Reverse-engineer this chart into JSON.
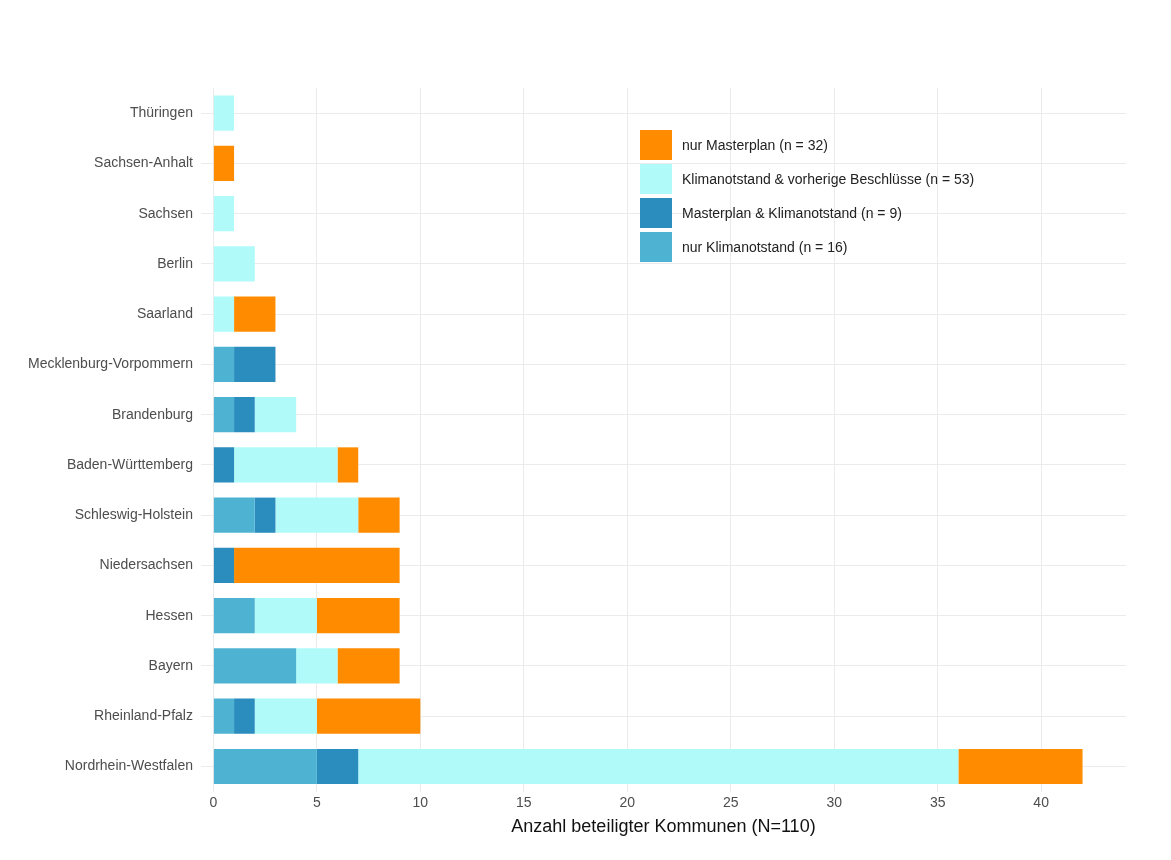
{
  "chart_data": {
    "type": "bar",
    "orientation": "horizontal",
    "stacked": true,
    "xlabel": "Anzahl beteiligter Kommunen (N=110)",
    "categories": [
      "Thüringen",
      "Sachsen-Anhalt",
      "Sachsen",
      "Berlin",
      "Saarland",
      "Mecklenburg-Vorpommern",
      "Brandenburg",
      "Baden-Württemberg",
      "Schleswig-Holstein",
      "Niedersachsen",
      "Hessen",
      "Bayern",
      "Rheinland-Pfalz",
      "Nordrhein-Westfalen"
    ],
    "series": [
      {
        "name": "nur Klimanotstand (n = 16)",
        "color": "#4eb3d3",
        "values": [
          0,
          0,
          0,
          0,
          0,
          1,
          1,
          0,
          2,
          0,
          2,
          4,
          1,
          5
        ]
      },
      {
        "name": "Masterplan & Klimanotstand (n = 9)",
        "color": "#2b8cbe",
        "values": [
          0,
          0,
          0,
          0,
          0,
          2,
          1,
          1,
          1,
          1,
          0,
          0,
          1,
          2
        ]
      },
      {
        "name": "Klimanotstand & vorherige Beschlüsse (n = 53)",
        "color": "#b0fafa",
        "values": [
          1,
          0,
          1,
          2,
          1,
          0,
          2,
          5,
          4,
          0,
          3,
          2,
          3,
          29
        ]
      },
      {
        "name": "nur Masterplan (n = 32)",
        "color": "#ff8c00",
        "values": [
          0,
          1,
          0,
          0,
          2,
          0,
          0,
          1,
          2,
          8,
          4,
          3,
          5,
          6
        ]
      }
    ],
    "xlim": [
      -0.6,
      44.1
    ],
    "xticks": [
      0,
      5,
      10,
      15,
      20,
      25,
      30,
      35,
      40
    ],
    "grid": true,
    "legend": "top right"
  }
}
